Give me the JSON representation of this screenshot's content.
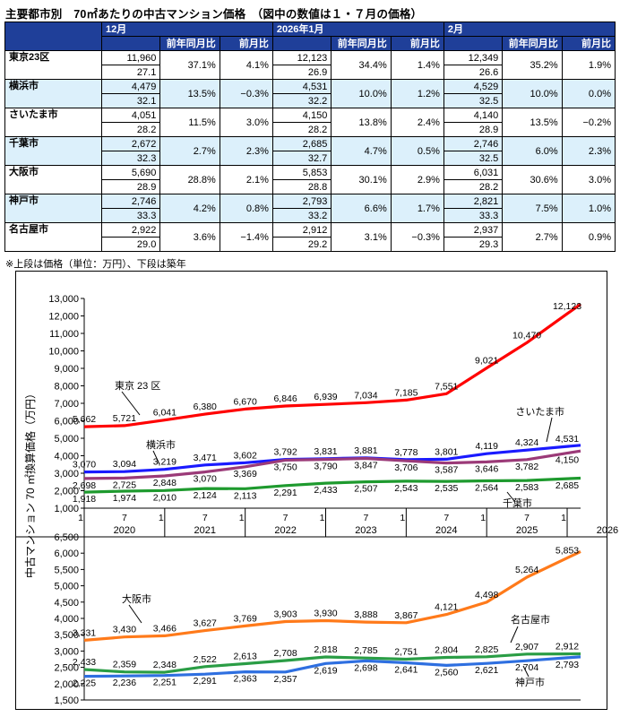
{
  "title": "主要都市別　70㎡あたりの中古マンション価格　（図中の数値は１・７月の価格）",
  "table": {
    "groups": [
      "12月",
      "2026年1月",
      "2月"
    ],
    "subheaders": [
      "前年同月比",
      "前月比"
    ],
    "rows": [
      {
        "city": "東京23区",
        "cells": [
          [
            "11,960",
            "27.1",
            "37.1%",
            "4.1%"
          ],
          [
            "12,123",
            "26.9",
            "34.4%",
            "1.4%"
          ],
          [
            "12,349",
            "26.6",
            "35.2%",
            "1.9%"
          ]
        ]
      },
      {
        "city": "横浜市",
        "cells": [
          [
            "4,479",
            "32.1",
            "13.5%",
            "−0.3%"
          ],
          [
            "4,531",
            "32.2",
            "10.0%",
            "1.2%"
          ],
          [
            "4,529",
            "32.5",
            "10.0%",
            "0.0%"
          ]
        ]
      },
      {
        "city": "さいたま市",
        "cells": [
          [
            "4,051",
            "28.2",
            "11.5%",
            "3.0%"
          ],
          [
            "4,150",
            "28.2",
            "13.8%",
            "2.4%"
          ],
          [
            "4,140",
            "28.9",
            "13.5%",
            "−0.2%"
          ]
        ]
      },
      {
        "city": "千葉市",
        "cells": [
          [
            "2,672",
            "32.3",
            "2.7%",
            "2.3%"
          ],
          [
            "2,685",
            "32.7",
            "4.7%",
            "0.5%"
          ],
          [
            "2,746",
            "32.5",
            "6.0%",
            "2.3%"
          ]
        ]
      },
      {
        "city": "大阪市",
        "cells": [
          [
            "5,690",
            "28.9",
            "28.8%",
            "2.1%"
          ],
          [
            "5,853",
            "28.8",
            "30.1%",
            "2.9%"
          ],
          [
            "6,031",
            "28.2",
            "30.6%",
            "3.0%"
          ]
        ]
      },
      {
        "city": "神戸市",
        "cells": [
          [
            "2,746",
            "33.3",
            "4.2%",
            "0.8%"
          ],
          [
            "2,793",
            "33.2",
            "6.6%",
            "1.7%"
          ],
          [
            "2,821",
            "33.3",
            "7.5%",
            "1.0%"
          ]
        ]
      },
      {
        "city": "名古屋市",
        "cells": [
          [
            "2,922",
            "29.0",
            "3.6%",
            "−1.4%"
          ],
          [
            "2,912",
            "29.2",
            "3.1%",
            "−0.3%"
          ],
          [
            "2,937",
            "29.3",
            "2.7%",
            "0.9%"
          ]
        ]
      }
    ]
  },
  "note": "※上段は価格（単位：万円）、下段は築年",
  "chart_data": [
    {
      "type": "line",
      "ylabel": "中古マンション 70 ㎡換算価格（万円）",
      "ylim": [
        1000,
        13000
      ],
      "yticks": [
        "13,000",
        "12,000",
        "11,000",
        "10,000",
        "9,000",
        "8,000",
        "7,000",
        "6,000",
        "5,000",
        "4,000",
        "3,000",
        "2,000",
        "1,000"
      ],
      "x": [
        "2020/1",
        "2020/7",
        "2021/1",
        "2021/7",
        "2022/1",
        "2022/7",
        "2023/1",
        "2023/7",
        "2024/1",
        "2024/7",
        "2025/1",
        "2025/7",
        "2026/1"
      ],
      "xticks": [
        "1",
        "7",
        "1",
        "7",
        "1",
        "7",
        "1",
        "7",
        "1",
        "7",
        "1",
        "7",
        "1"
      ],
      "years": [
        "2020",
        "2021",
        "2022",
        "2023",
        "2024",
        "2025",
        "2026"
      ],
      "series": [
        {
          "name": "東京 23 区",
          "color": "#ff0000",
          "values": [
            5662,
            5721,
            6041,
            6380,
            6670,
            6846,
            6939,
            7034,
            7185,
            7551,
            9021,
            10470,
            12123
          ],
          "labels": [
            "5,662",
            "5,721",
            "6,041",
            "6,380",
            "6,670",
            "6,846",
            "6,939",
            "7,034",
            "7,185",
            "7,551",
            "9,021",
            "10,470",
            "12,123"
          ]
        },
        {
          "name": "横浜市",
          "color": "#1a1aff",
          "values": [
            3070,
            3094,
            3219,
            3471,
            3602,
            3792,
            3831,
            3881,
            3778,
            3801,
            4119,
            4324,
            4531
          ],
          "labels": [
            "3,070",
            "3,094",
            "3,219",
            "3,471",
            "3,602",
            "3,792",
            "3,831",
            "3,881",
            "3,778",
            "3,801",
            "4,119",
            "4,324",
            "4,531"
          ]
        },
        {
          "name": "さいたま市",
          "color": "#9b3a78",
          "values": [
            2698,
            2725,
            2848,
            3070,
            3369,
            3750,
            3790,
            3847,
            3706,
            3587,
            3646,
            3782,
            4150
          ],
          "labels": [
            "2,698",
            "2,725",
            "2,848",
            "3,070",
            "3,369",
            "3,750",
            "3,790",
            "3,847",
            "3,706",
            "3,587",
            "3,646",
            "3,782",
            "4,150"
          ]
        },
        {
          "name": "千葉市",
          "color": "#1e9a2e",
          "values": [
            1918,
            1974,
            2010,
            2124,
            2113,
            2291,
            2433,
            2507,
            2543,
            2535,
            2564,
            2583,
            2685
          ],
          "labels": [
            "1,918",
            "1,974",
            "2,010",
            "2,124",
            "2,113",
            "2,291",
            "2,433",
            "2,507",
            "2,543",
            "2,535",
            "2,564",
            "2,583",
            "2,685"
          ]
        }
      ]
    },
    {
      "type": "line",
      "ylim": [
        1500,
        6500
      ],
      "yticks": [
        "6,500",
        "6,000",
        "5,500",
        "5,000",
        "4,500",
        "4,000",
        "3,500",
        "3,000",
        "2,500",
        "2,000",
        "1,500"
      ],
      "x": [
        "2020/1",
        "2020/7",
        "2021/1",
        "2021/7",
        "2022/1",
        "2022/7",
        "2023/1",
        "2023/7",
        "2024/1",
        "2024/7",
        "2025/1",
        "2025/7",
        "2026/1"
      ],
      "series": [
        {
          "name": "大阪市",
          "color": "#ff7a1a",
          "values": [
            3331,
            3430,
            3466,
            3627,
            3769,
            3903,
            3930,
            3888,
            3867,
            4121,
            4498,
            5264,
            5853
          ],
          "labels": [
            "3,331",
            "3,430",
            "3,466",
            "3,627",
            "3,769",
            "3,903",
            "3,930",
            "3,888",
            "3,867",
            "4,121",
            "4,498",
            "5,264",
            "5,853"
          ]
        },
        {
          "name": "名古屋市",
          "color": "#2a9d45",
          "values": [
            2433,
            2359,
            2348,
            2522,
            2613,
            2708,
            2818,
            2785,
            2751,
            2804,
            2825,
            2907,
            2912
          ],
          "labels": [
            "2,433",
            "2,359",
            "2,348",
            "2,522",
            "2,613",
            "2,708",
            "2,818",
            "2,785",
            "2,751",
            "2,804",
            "2,825",
            "2,907",
            "2,912"
          ]
        },
        {
          "name": "神戸市",
          "color": "#2e6fe0",
          "values": [
            2225,
            2236,
            2251,
            2291,
            2363,
            2357,
            2619,
            2698,
            2641,
            2560,
            2621,
            2704,
            2793
          ],
          "labels": [
            "2,225",
            "2,236",
            "2,251",
            "2,291",
            "2,363",
            "2,357",
            "2,619",
            "2,698",
            "2,641",
            "2,560",
            "2,621",
            "2,704",
            "2,793"
          ]
        }
      ]
    }
  ]
}
